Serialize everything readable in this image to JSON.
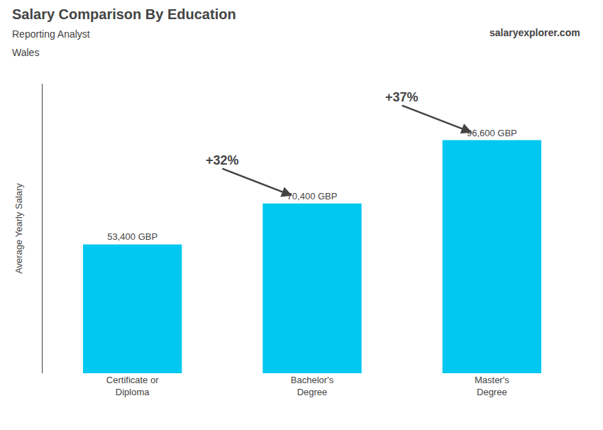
{
  "chart_data": {
    "type": "bar",
    "title": "Salary Comparison By Education",
    "subtitle": [
      "Reporting Analyst",
      "Wales"
    ],
    "y_label": "Average Yearly Salary",
    "categories": [
      "Certificate or\nDiploma",
      "Bachelor's\nDegree",
      "Master's\nDegree"
    ],
    "values": [
      53400,
      70400,
      96600
    ],
    "value_labels": [
      "53,400 GBP",
      "70,400 GBP",
      "96,600 GBP"
    ],
    "data_labels": true,
    "annotations": [
      "+32%",
      "+37%",
      "salaryexplorer.com"
    ],
    "color": "#00c8f0",
    "ylim": [
      0,
      120000
    ],
    "tick_labels": "x",
    "grid": false
  }
}
